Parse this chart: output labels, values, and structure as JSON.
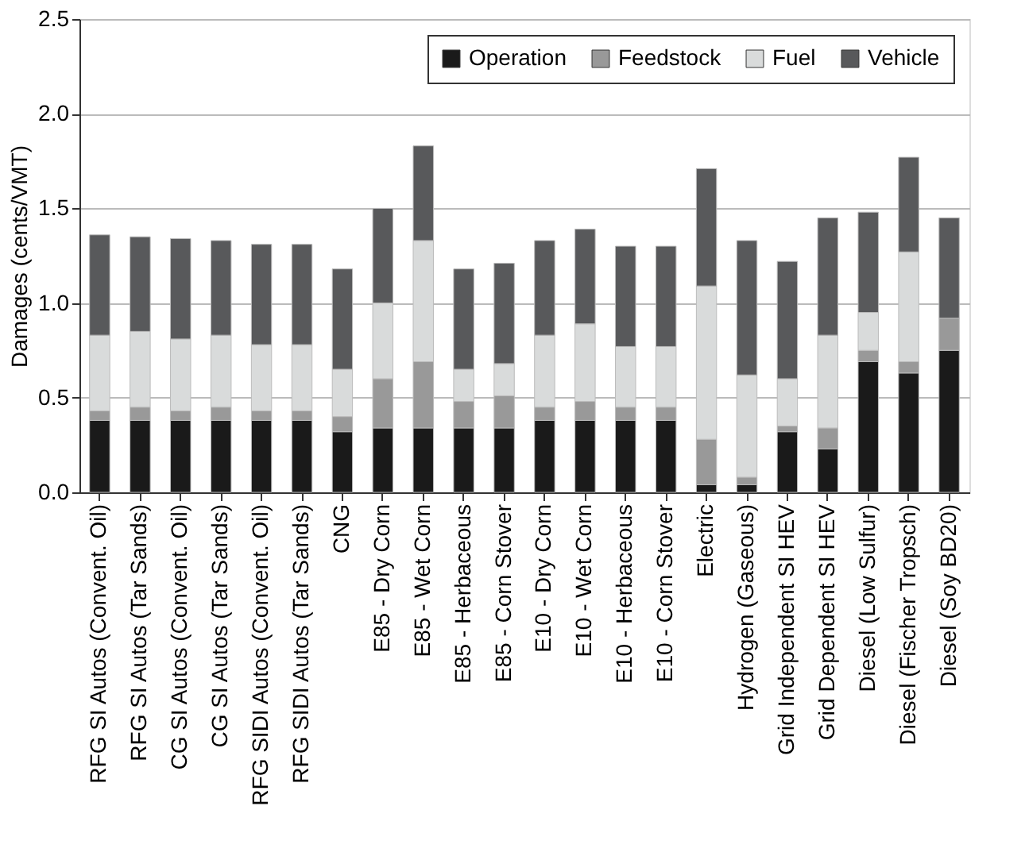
{
  "chart_data": {
    "type": "bar",
    "stacked": true,
    "ylabel": "Damages (cents/VMT)",
    "categories": [
      "RFG SI Autos (Convent. Oil)",
      "RFG SI Autos (Tar Sands)",
      "CG SI Autos (Convent. Oil)",
      "CG SI Autos (Tar Sands)",
      "RFG SIDI Autos (Convent. Oil)",
      "RFG SIDI Autos (Tar Sands)",
      "CNG",
      "E85 - Dry Corn",
      "E85 - Wet Corn",
      "E85 - Herbaceous",
      "E85 - Corn Stover",
      "E10 - Dry Corn",
      "E10 - Wet Corn",
      "E10 - Herbaceous",
      "E10 - Corn Stover",
      "Electric",
      "Hydrogen (Gaseous)",
      "Grid Independent SI HEV",
      "Grid Dependent SI HEV",
      "Diesel (Low Sulfur)",
      "Diesel (Fischer Tropsch)",
      "Diesel (Soy BD20)"
    ],
    "series": [
      {
        "name": "Operation",
        "color": "#1a1a1a",
        "values": [
          0.38,
          0.38,
          0.38,
          0.38,
          0.38,
          0.38,
          0.32,
          0.34,
          0.34,
          0.34,
          0.34,
          0.38,
          0.38,
          0.38,
          0.38,
          0.04,
          0.04,
          0.32,
          0.23,
          0.69,
          0.63,
          0.75
        ]
      },
      {
        "name": "Feedstock",
        "color": "#999999",
        "values": [
          0.05,
          0.07,
          0.05,
          0.07,
          0.05,
          0.05,
          0.08,
          0.26,
          0.35,
          0.14,
          0.17,
          0.07,
          0.1,
          0.07,
          0.07,
          0.24,
          0.04,
          0.03,
          0.11,
          0.06,
          0.06,
          0.17
        ]
      },
      {
        "name": "Fuel",
        "color": "#d9dbdb",
        "values": [
          0.4,
          0.4,
          0.38,
          0.38,
          0.35,
          0.35,
          0.25,
          0.4,
          0.64,
          0.17,
          0.17,
          0.38,
          0.41,
          0.32,
          0.32,
          0.81,
          0.54,
          0.25,
          0.49,
          0.2,
          0.58,
          null
        ]
      },
      {
        "name": "Vehicle",
        "color": "#58595b",
        "values": [
          0.53,
          0.5,
          0.53,
          0.5,
          0.53,
          0.53,
          0.53,
          0.5,
          0.5,
          0.53,
          0.53,
          0.5,
          0.5,
          0.53,
          0.53,
          0.62,
          0.71,
          0.62,
          0.62,
          0.53,
          0.5,
          0.53
        ]
      }
    ],
    "ylim": [
      0,
      2.5
    ],
    "yticks": [
      {
        "value": 0,
        "label": "0.0"
      },
      {
        "value": 0.5,
        "label": "0.5"
      },
      {
        "value": 1,
        "label": "1.0"
      },
      {
        "value": 1.5,
        "label": "1.5"
      },
      {
        "value": 2,
        "label": "2.0"
      },
      {
        "value": 2.5,
        "label": "2.5"
      }
    ],
    "grid": "y",
    "legend": "top right"
  }
}
